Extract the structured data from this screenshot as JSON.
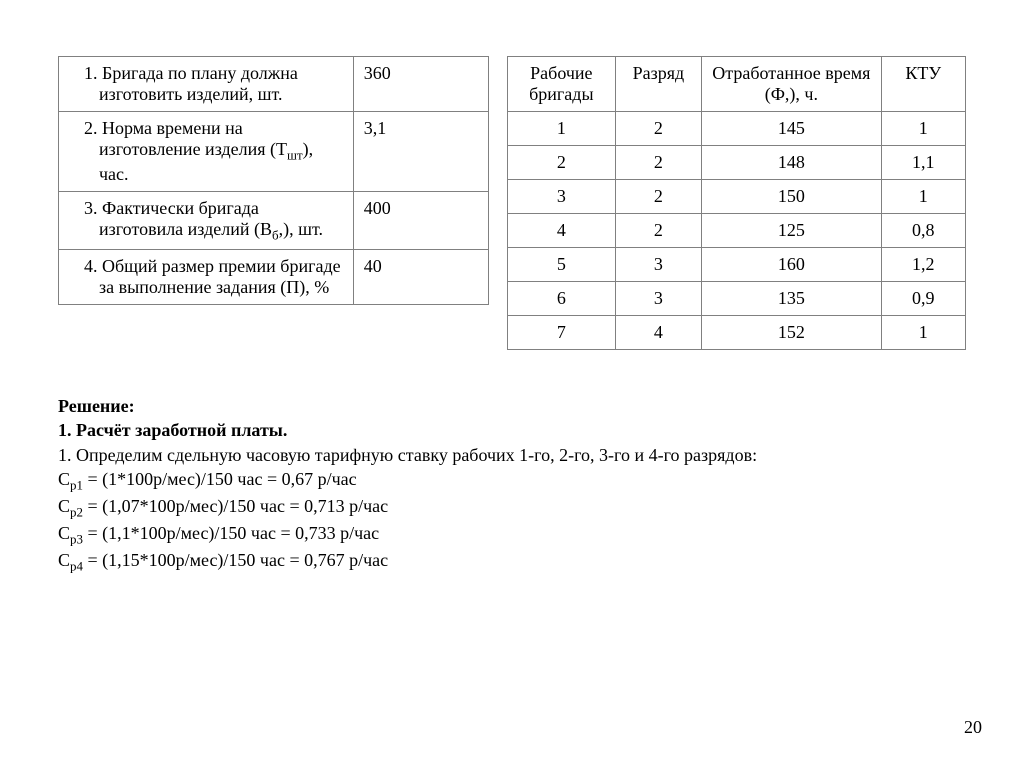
{
  "leftTable": {
    "rows": [
      {
        "n": "1.",
        "text": "Бригада по плану должна изготовить изделий, шт.",
        "value": "360"
      },
      {
        "n": "2.",
        "text": "Норма времени на изготовление изделия (Т_шт_), час.",
        "value": "3,1"
      },
      {
        "n": "3.",
        "text": "Фактически бригада изготовила изделий (В_б_,), шт.",
        "value": "400"
      },
      {
        "n": "4.",
        "text": "Общий размер премии бригаде за выполнение задания (П), %",
        "value": "40"
      }
    ]
  },
  "rightTable": {
    "headers": [
      "Рабочие бригады",
      "Разряд",
      "Отработанное время (Ф,), ч.",
      "КТУ"
    ],
    "rows": [
      [
        "1",
        "2",
        "145",
        "1"
      ],
      [
        "2",
        "2",
        "148",
        "1,1"
      ],
      [
        "3",
        "2",
        "150",
        "1"
      ],
      [
        "4",
        "2",
        "125",
        "0,8"
      ],
      [
        "5",
        "3",
        "160",
        "1,2"
      ],
      [
        "6",
        "3",
        "135",
        "0,9"
      ],
      [
        "7",
        "4",
        "152",
        "1"
      ]
    ]
  },
  "solution": {
    "title": "Решение:",
    "subtitle": "1. Расчёт заработной платы.",
    "intro": "1. Определим сдельную часовую тарифную ставку рабочих 1-го, 2-го, 3-го и 4-го разрядов:",
    "lines": [
      {
        "sub": "р1",
        "rest": " = (1*100р/мес)/150 час = 0,67 р/час"
      },
      {
        "sub": "р2",
        "rest": " = (1,07*100р/мес)/150 час = 0,713 р/час"
      },
      {
        "sub": "р3",
        "rest": " = (1,1*100р/мес)/150 час = 0,733 р/час"
      },
      {
        "sub": "р4",
        "rest": " = (1,15*100р/мес)/150 час = 0,767 р/час"
      }
    ]
  },
  "pageNumber": "20"
}
